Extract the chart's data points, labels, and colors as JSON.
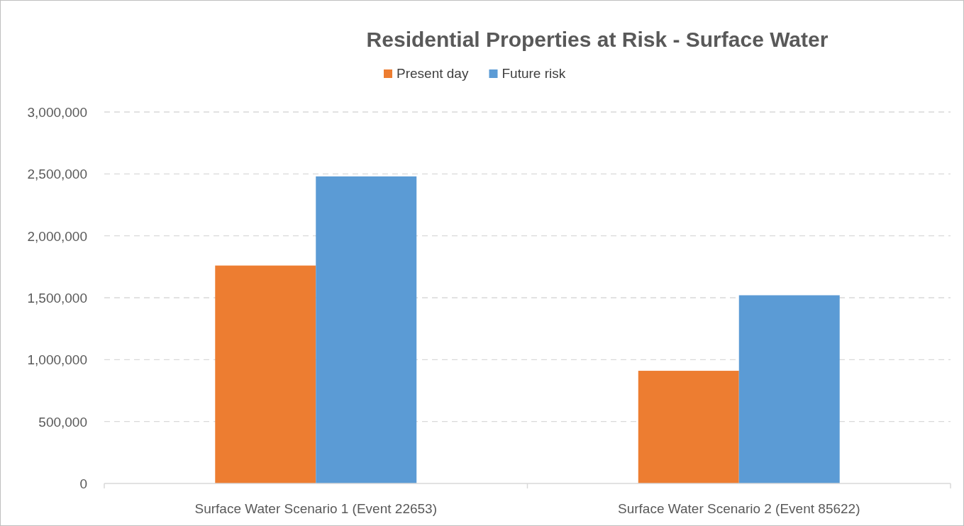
{
  "chart_data": {
    "type": "bar",
    "title": "Residential Properties at Risk - Surface Water",
    "categories": [
      "Surface Water Scenario 1 (Event 22653)",
      "Surface Water Scenario 2 (Event 85622)"
    ],
    "series": [
      {
        "name": "Present day",
        "color": "#ed7d31",
        "values": [
          1760000,
          910000
        ]
      },
      {
        "name": "Future risk",
        "color": "#5b9bd5",
        "values": [
          2480000,
          1520000
        ]
      }
    ],
    "ylim": [
      0,
      3000000
    ],
    "yticks": [
      {
        "value": 0,
        "label": "0"
      },
      {
        "value": 500000,
        "label": "500,000"
      },
      {
        "value": 1000000,
        "label": "1,000,000"
      },
      {
        "value": 1500000,
        "label": "1,500,000"
      },
      {
        "value": 2000000,
        "label": "2,000,000"
      },
      {
        "value": 2500000,
        "label": "2,500,000"
      },
      {
        "value": 3000000,
        "label": "3,000,000"
      }
    ],
    "grid": "y",
    "legend": "top"
  }
}
